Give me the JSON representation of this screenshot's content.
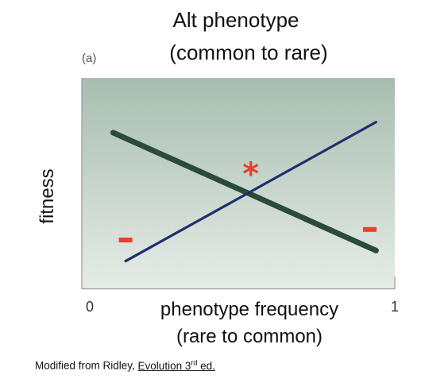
{
  "chart_data": {
    "type": "line",
    "panel_label": "(a)",
    "title_lines": [
      "Alt phenotype",
      "(common to rare)"
    ],
    "xlabel_lines": [
      "phenotype frequency",
      "(rare to common)"
    ],
    "ylabel": "fitness",
    "x_ticks": [
      {
        "value": 0,
        "label": "0"
      },
      {
        "value": 1,
        "label": "1"
      }
    ],
    "xlim": [
      0,
      1
    ],
    "ylim": [
      0,
      1
    ],
    "grid": false,
    "background_gradient": [
      "#a7bdb0",
      "#e6ece7"
    ],
    "series": [
      {
        "color": "#2a4a3a",
        "x": [
          0.1,
          0.94
        ],
        "y": [
          0.74,
          0.18
        ]
      },
      {
        "color": "#1f2e6e",
        "x": [
          0.14,
          0.94
        ],
        "y": [
          0.13,
          0.79
        ]
      }
    ],
    "annotations": [
      {
        "text": "*",
        "x": 0.54,
        "y": 0.55,
        "color": "#e8402a"
      },
      {
        "text": "–",
        "x": 0.14,
        "y": 0.23,
        "color": "#e8402a"
      },
      {
        "text": "–",
        "x": 0.92,
        "y": 0.28,
        "color": "#e8402a"
      }
    ]
  },
  "credit": {
    "prefix": "Modified from Ridley, ",
    "book": "Evolution 3",
    "sup": "rd",
    "suffix": " ed."
  }
}
